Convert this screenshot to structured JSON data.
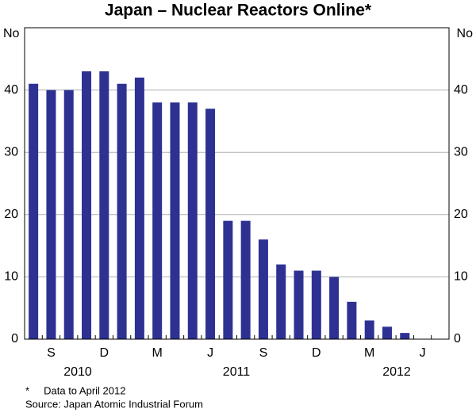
{
  "chart_data": {
    "type": "bar",
    "title": "Japan – Nuclear Reactors Online*",
    "y_label_left": "No",
    "y_label_right": "No",
    "categories": [
      null,
      "S",
      null,
      null,
      "D",
      null,
      null,
      "M",
      null,
      null,
      "J",
      null,
      null,
      "S",
      null,
      null,
      "D",
      null,
      null,
      "M",
      null,
      null,
      "J",
      null
    ],
    "years": [
      "2010",
      "2011",
      "2012"
    ],
    "values": [
      41,
      40,
      40,
      43,
      43,
      41,
      42,
      38,
      38,
      38,
      37,
      19,
      19,
      16,
      12,
      11,
      11,
      10,
      6,
      3,
      2,
      1,
      null,
      null
    ],
    "color": "#2e3192",
    "ylim": [
      0,
      50
    ],
    "yticks": [
      0,
      10,
      20,
      30,
      40
    ],
    "grid": true,
    "footnote": "*     Data to April 2012",
    "source": "Source: Japan Atomic Industrial Forum"
  }
}
